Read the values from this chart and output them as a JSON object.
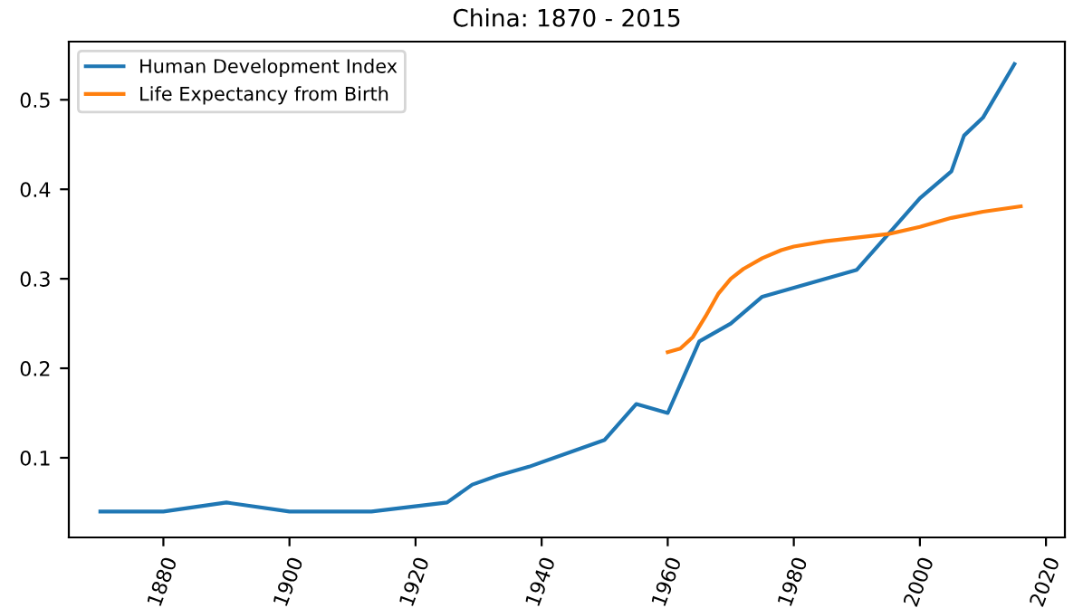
{
  "chart_data": {
    "type": "line",
    "title": "China: 1870 - 2015",
    "legend": "top left",
    "grid": false,
    "xlim": [
      1865,
      2023
    ],
    "xticks": [
      1880,
      1900,
      1920,
      1940,
      1960,
      1980,
      2000,
      2020
    ],
    "ylim": [
      0.011,
      0.565
    ],
    "yticks": [
      0.1,
      0.2,
      0.3,
      0.4,
      0.5
    ],
    "series": [
      {
        "name": "Human Development Index",
        "color": "#1f77b4",
        "x": [
          1870,
          1880,
          1890,
          1900,
          1913,
          1925,
          1929,
          1933,
          1938,
          1950,
          1955,
          1960,
          1965,
          1970,
          1975,
          1990,
          2000,
          2005,
          2007,
          2010,
          2015
        ],
        "values": [
          0.04,
          0.04,
          0.05,
          0.04,
          0.04,
          0.05,
          0.07,
          0.08,
          0.09,
          0.12,
          0.16,
          0.15,
          0.23,
          0.25,
          0.28,
          0.31,
          0.39,
          0.42,
          0.46,
          0.48,
          0.54
        ]
      },
      {
        "name": "Life Expectancy from Birth",
        "color": "#ff7f0e",
        "x": [
          1960,
          1962,
          1964,
          1966,
          1968,
          1970,
          1972,
          1975,
          1978,
          1980,
          1985,
          1990,
          1995,
          2000,
          2005,
          2010,
          2016
        ],
        "values": [
          0.218,
          0.222,
          0.235,
          0.258,
          0.283,
          0.3,
          0.311,
          0.323,
          0.332,
          0.336,
          0.342,
          0.346,
          0.35,
          0.358,
          0.368,
          0.375,
          0.381
        ]
      }
    ]
  }
}
